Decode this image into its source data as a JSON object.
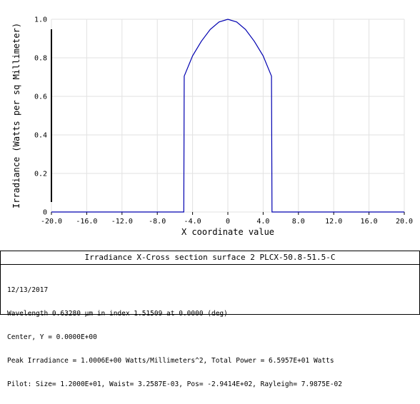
{
  "chart_data": {
    "type": "line",
    "title": "",
    "xlabel": "X coordinate value",
    "ylabel": "Irradiance (Watts per sq Millimeter)",
    "xlim": [
      -20.0,
      20.0
    ],
    "ylim": [
      0,
      1.0
    ],
    "x_ticks": [
      "-20.0",
      "-16.0",
      "-12.0",
      "-8.0",
      "-4.0",
      "0",
      "4.0",
      "8.0",
      "12.0",
      "16.0",
      "20.0"
    ],
    "y_ticks": [
      "0",
      "0.2",
      "0.4",
      "0.6",
      "0.8",
      "1.0"
    ],
    "grid": true,
    "series": [
      {
        "color": "#0000b0",
        "x": [
          -20.0,
          -5.0,
          -4.95,
          -4.0,
          -3.0,
          -2.0,
          -1.0,
          0.0,
          1.0,
          2.0,
          3.0,
          4.0,
          4.95,
          5.0,
          20.0
        ],
        "y": [
          0.0,
          0.0,
          0.705,
          0.81,
          0.886,
          0.947,
          0.986,
          1.0,
          0.986,
          0.947,
          0.886,
          0.81,
          0.705,
          0.0,
          0.0
        ]
      }
    ]
  },
  "panel": {
    "title": "Irradiance X-Cross section surface 2 PLCX-50.8-51.5-C",
    "lines": [
      "12/13/2017",
      "Wavelength 0.63280 µm in index 1.51509 at 0.0000 (deg)",
      "Center, Y = 0.0000E+00",
      "Peak Irradiance = 1.0006E+00 Watts/Millimeters^2, Total Power = 6.5957E+01 Watts",
      "Pilot: Size= 1.2000E+01, Waist= 3.2587E-03, Pos= -2.9414E+02, Rayleigh= 7.9875E-02"
    ]
  }
}
